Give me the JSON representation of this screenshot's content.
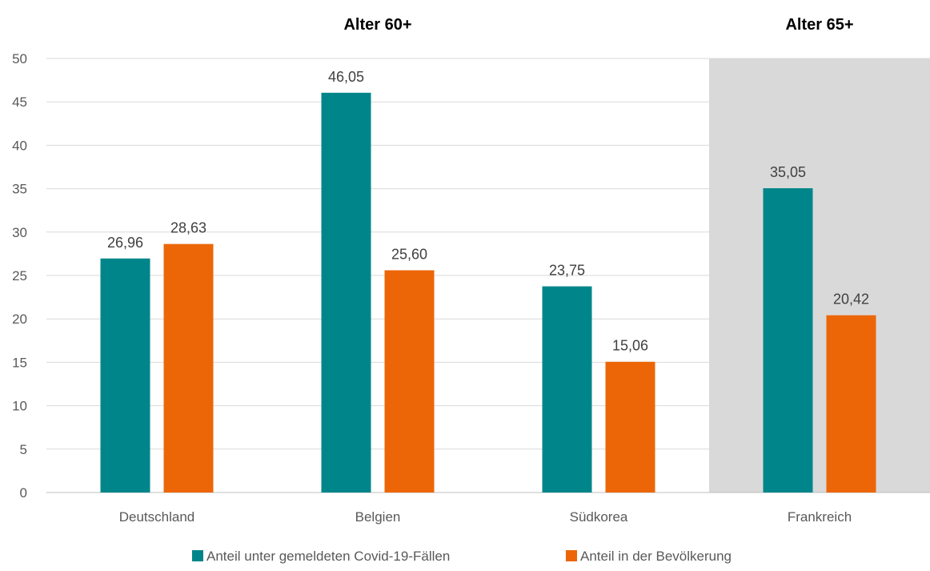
{
  "chart_data": {
    "type": "bar",
    "categories": [
      "Deutschland",
      "Belgien",
      "Südkorea",
      "Frankreich"
    ],
    "series": [
      {
        "name": "Anteil unter gemeldeten Covid-19-Fällen",
        "values": [
          26.96,
          46.05,
          23.75,
          35.05
        ],
        "labels": [
          "26,96",
          "46,05",
          "23,75",
          "35,05"
        ],
        "color": "#00868A"
      },
      {
        "name": "Anteil in der Bevölkerung",
        "values": [
          28.63,
          25.6,
          15.06,
          20.42
        ],
        "labels": [
          "28,63",
          "25,60",
          "15,06",
          "20,42"
        ],
        "color": "#EC6608"
      }
    ],
    "ylim": [
      0,
      50
    ],
    "yticks": [
      0,
      5,
      10,
      15,
      20,
      25,
      30,
      35,
      40,
      45,
      50
    ],
    "grid": true,
    "legend_position": "bottom",
    "group_headers": [
      {
        "text": "Alter 60+",
        "categories": [
          "Deutschland",
          "Belgien",
          "Südkorea"
        ]
      },
      {
        "text": "Alter 65+",
        "categories": [
          "Frankreich"
        ],
        "shaded": true,
        "shade_color": "#D9D9D9"
      }
    ]
  }
}
